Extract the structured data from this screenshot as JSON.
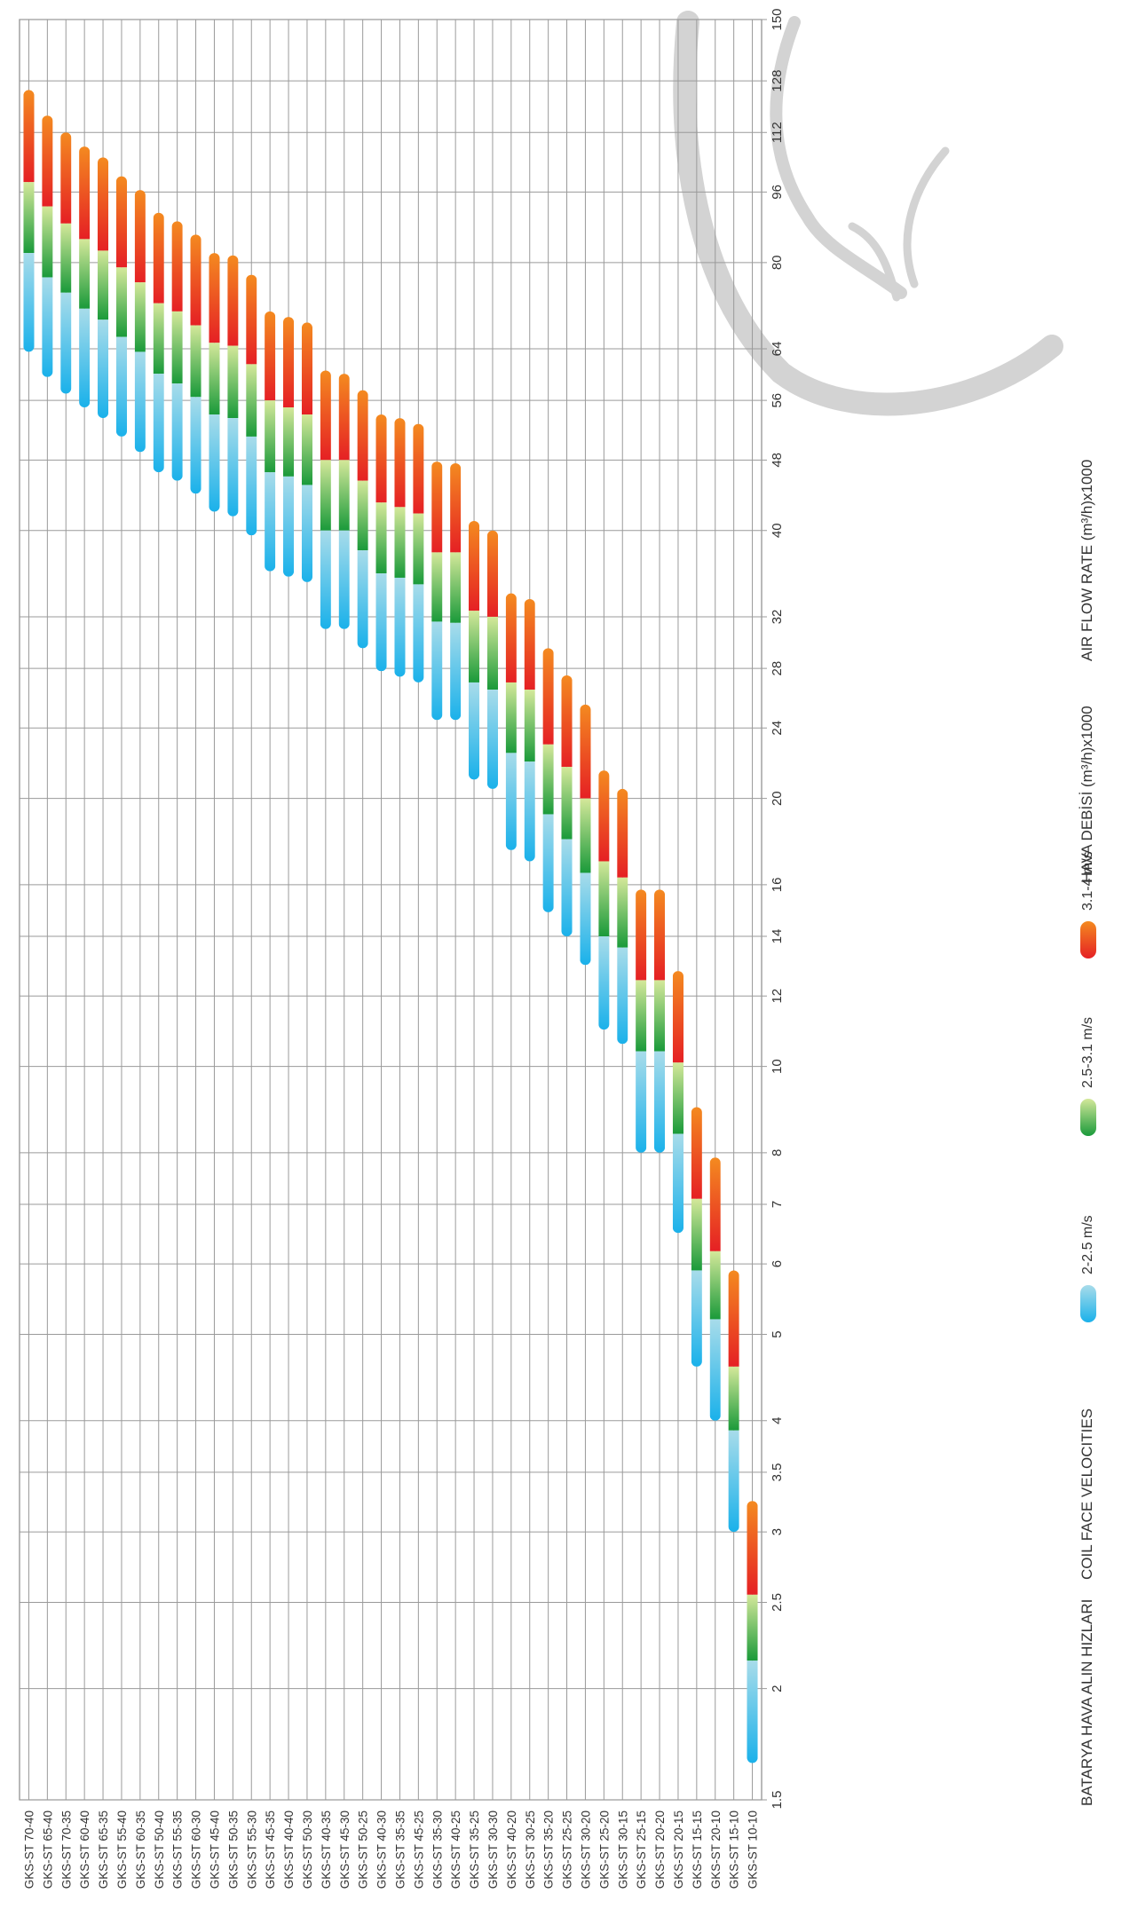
{
  "chart_data": {
    "type": "bar",
    "orientation": "horizontal-range",
    "title": "",
    "ylabel": "HAVA DEBİSİ (m³/h)x1000    AIR FLOW RATE (m³/h)x1000",
    "ylabel_tr": "HAVA DEBİSİ (m³/h)x1000",
    "ylabel_en": "AIR FLOW RATE (m³/h)x1000",
    "legend_title_tr": "BATARYA HAVA ALIN HIZLARI",
    "legend_title_en": "COIL FACE VELOCITIES",
    "legend_placement": "left",
    "y_scale": "log",
    "ylim": [
      1.5,
      150
    ],
    "y_ticks": [
      "1.5",
      "2",
      "2.5",
      "3",
      "3.5",
      "4",
      "5",
      "6",
      "7",
      "8",
      "10",
      "12",
      "14",
      "16",
      "20",
      "24",
      "28",
      "32",
      "40",
      "48",
      "56",
      "64",
      "80",
      "96",
      "112",
      "128",
      "150"
    ],
    "grid": true,
    "series": [
      {
        "name": "2-2.5 m/s",
        "color_top": "#a8dcea",
        "color_bottom": "#1ab1ea"
      },
      {
        "name": "2.5-3.1 m/s",
        "color_top": "#d4e89a",
        "color_bottom": "#1a9a3a"
      },
      {
        "name": "3.1-4 m/s",
        "color_top": "#f48a20",
        "color_bottom": "#e52024"
      }
    ],
    "categories": [
      "GKS-ST 70-40",
      "GKS-ST 65-40",
      "GKS-ST 70-35",
      "GKS-ST 60-40",
      "GKS-ST 65-35",
      "GKS-ST 55-40",
      "GKS-ST 60-35",
      "GKS-ST 50-40",
      "GKS-ST 55-35",
      "GKS-ST 60-30",
      "GKS-ST 45-40",
      "GKS-ST 50-35",
      "GKS-ST 55-30",
      "GKS-ST 45-35",
      "GKS-ST 40-40",
      "GKS-ST 50-30",
      "GKS-ST 40-35",
      "GKS-ST 45-30",
      "GKS-ST 50-25",
      "GKS-ST 40-30",
      "GKS-ST 35-35",
      "GKS-ST 45-25",
      "GKS-ST 35-30",
      "GKS-ST 40-25",
      "GKS-ST 35-25",
      "GKS-ST 30-30",
      "GKS-ST 40-20",
      "GKS-ST 30-25",
      "GKS-ST 35-20",
      "GKS-ST 25-25",
      "GKS-ST 30-20",
      "GKS-ST 25-20",
      "GKS-ST 30-15",
      "GKS-ST 25-15",
      "GKS-ST 20-20",
      "GKS-ST 20-15",
      "GKS-ST 15-15",
      "GKS-ST 20-10",
      "GKS-ST 15-10",
      "GKS-ST 10-10"
    ],
    "ranges": [
      [
        63.5,
        82.0,
        98.5,
        125
      ],
      [
        59.5,
        77.0,
        92.5,
        117
      ],
      [
        57.0,
        74.0,
        88.5,
        112
      ],
      [
        55.0,
        71.0,
        85.0,
        108
      ],
      [
        53.5,
        69.0,
        82.5,
        105
      ],
      [
        51.0,
        66.0,
        79.0,
        100
      ],
      [
        49.0,
        63.5,
        76.0,
        96.5
      ],
      [
        46.5,
        60.0,
        72.0,
        91
      ],
      [
        45.5,
        58.5,
        70.5,
        89
      ],
      [
        44.0,
        56.5,
        68.0,
        86
      ],
      [
        42.0,
        54.0,
        65.0,
        82
      ],
      [
        41.5,
        53.5,
        64.5,
        81.5
      ],
      [
        39.5,
        51.0,
        61.5,
        77.5
      ],
      [
        36.0,
        46.5,
        56.0,
        70.5
      ],
      [
        35.5,
        46.0,
        55.0,
        69.5
      ],
      [
        35.0,
        45.0,
        54.0,
        68.5
      ],
      [
        31.0,
        40.0,
        48.0,
        60.5
      ],
      [
        31.0,
        40.0,
        48.0,
        60.0
      ],
      [
        29.5,
        38.0,
        45.5,
        57.5
      ],
      [
        27.8,
        35.8,
        43.0,
        54.0
      ],
      [
        27.4,
        35.4,
        42.5,
        53.5
      ],
      [
        27.0,
        34.8,
        41.8,
        52.7
      ],
      [
        24.5,
        31.6,
        37.8,
        47.8
      ],
      [
        24.5,
        31.5,
        37.8,
        47.6
      ],
      [
        21.0,
        27.0,
        32.5,
        41.0
      ],
      [
        20.5,
        26.5,
        32.0,
        40.0
      ],
      [
        17.5,
        22.5,
        27.0,
        34.0
      ],
      [
        17.0,
        22.0,
        26.5,
        33.5
      ],
      [
        14.9,
        19.2,
        23.0,
        29.5
      ],
      [
        14.0,
        18.0,
        21.7,
        27.5
      ],
      [
        13.0,
        16.5,
        20.0,
        25.5
      ],
      [
        11.0,
        14.0,
        17.0,
        21.5
      ],
      [
        10.6,
        13.6,
        16.3,
        20.5
      ],
      [
        8.0,
        10.4,
        12.5,
        15.8
      ],
      [
        8.0,
        10.4,
        12.5,
        15.8
      ],
      [
        6.5,
        8.4,
        10.1,
        12.8
      ],
      [
        4.6,
        5.9,
        7.1,
        9.0
      ],
      [
        4.0,
        5.2,
        6.2,
        7.9
      ],
      [
        3.0,
        3.9,
        4.6,
        5.9
      ],
      [
        1.65,
        2.15,
        2.55,
        3.25
      ]
    ]
  }
}
